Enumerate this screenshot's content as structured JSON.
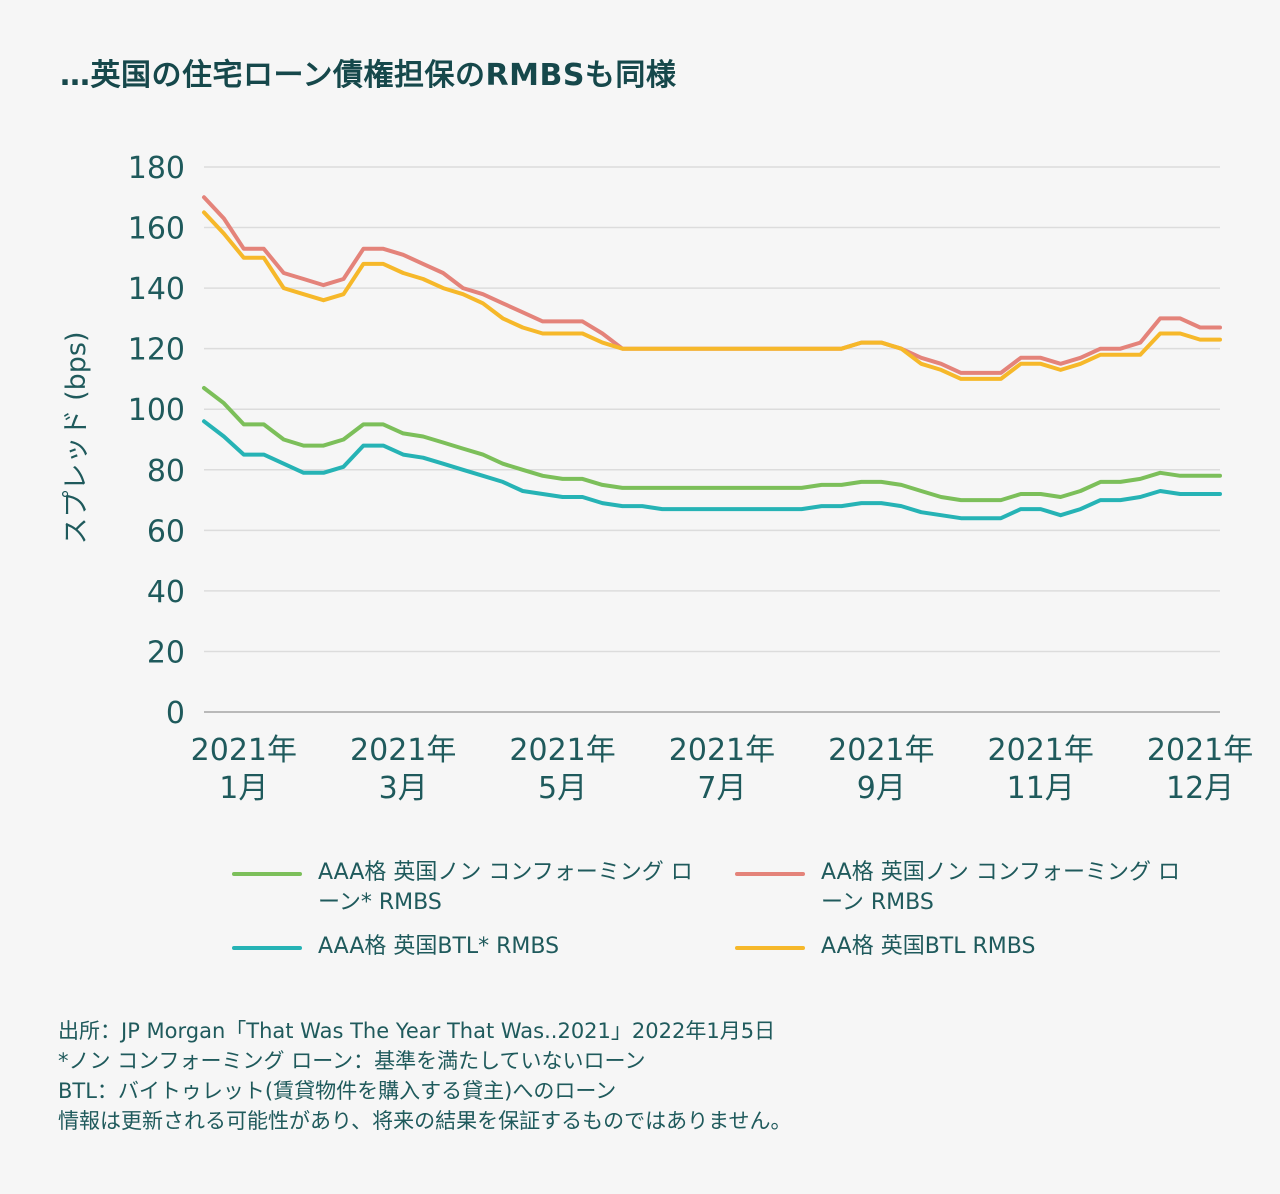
{
  "title": "…英国の住宅ローン債権担保のRMBSも同様",
  "chart_data": {
    "type": "line",
    "ylabel": "スプレッド (bps)",
    "ylim": [
      0,
      180
    ],
    "yticks": [
      0,
      20,
      40,
      60,
      80,
      100,
      120,
      140,
      160,
      180
    ],
    "grid": true,
    "legend_placement": "bottom",
    "x_tick_labels": [
      {
        "year": "2021年",
        "month": "1月",
        "index": 2
      },
      {
        "year": "2021年",
        "month": "3月",
        "index": 10
      },
      {
        "year": "2021年",
        "month": "5月",
        "index": 18
      },
      {
        "year": "2021年",
        "month": "7月",
        "index": 26
      },
      {
        "year": "2021年",
        "month": "9月",
        "index": 34
      },
      {
        "year": "2021年",
        "month": "11月",
        "index": 42
      },
      {
        "year": "2021年",
        "month": "12月",
        "index": 50
      }
    ],
    "x_points": 52,
    "series": [
      {
        "name": "AAA格 英国ノン コンフォーミング ローン* RMBS",
        "color": "#7cbf5a",
        "values": [
          107,
          102,
          95,
          95,
          90,
          88,
          88,
          90,
          95,
          95,
          92,
          91,
          89,
          87,
          85,
          82,
          80,
          78,
          77,
          77,
          75,
          74,
          74,
          74,
          74,
          74,
          74,
          74,
          74,
          74,
          74,
          75,
          75,
          76,
          76,
          75,
          73,
          71,
          70,
          70,
          70,
          72,
          72,
          71,
          73,
          76,
          76,
          77,
          79,
          78,
          78,
          78
        ]
      },
      {
        "name": "AAA格 英国BTL* RMBS",
        "color": "#26b3b5",
        "values": [
          96,
          91,
          85,
          85,
          82,
          79,
          79,
          81,
          88,
          88,
          85,
          84,
          82,
          80,
          78,
          76,
          73,
          72,
          71,
          71,
          69,
          68,
          68,
          67,
          67,
          67,
          67,
          67,
          67,
          67,
          67,
          68,
          68,
          69,
          69,
          68,
          66,
          65,
          64,
          64,
          64,
          67,
          67,
          65,
          67,
          70,
          70,
          71,
          73,
          72,
          72,
          72
        ]
      },
      {
        "name": "AA格 英国ノン コンフォーミング ローン RMBS",
        "color": "#e4837a",
        "values": [
          170,
          163,
          153,
          153,
          145,
          143,
          141,
          143,
          153,
          153,
          151,
          148,
          145,
          140,
          138,
          135,
          132,
          129,
          129,
          129,
          125,
          120,
          120,
          120,
          120,
          120,
          120,
          120,
          120,
          120,
          120,
          120,
          120,
          122,
          122,
          120,
          117,
          115,
          112,
          112,
          112,
          117,
          117,
          115,
          117,
          120,
          120,
          122,
          130,
          130,
          127,
          127
        ]
      },
      {
        "name": "AA格 英国BTL RMBS",
        "color": "#f6b82a",
        "values": [
          165,
          158,
          150,
          150,
          140,
          138,
          136,
          138,
          148,
          148,
          145,
          143,
          140,
          138,
          135,
          130,
          127,
          125,
          125,
          125,
          122,
          120,
          120,
          120,
          120,
          120,
          120,
          120,
          120,
          120,
          120,
          120,
          120,
          122,
          122,
          120,
          115,
          113,
          110,
          110,
          110,
          115,
          115,
          113,
          115,
          118,
          118,
          118,
          125,
          125,
          123,
          123
        ]
      }
    ]
  },
  "legend": [
    {
      "label": "AAA格 英国ノン コンフォーミング ローン* RMBS",
      "color": "#7cbf5a"
    },
    {
      "label": "AA格 英国ノン コンフォーミング ローン RMBS",
      "color": "#e4837a"
    },
    {
      "label": "AAA格 英国BTL* RMBS",
      "color": "#26b3b5"
    },
    {
      "label": "AA格 英国BTL RMBS",
      "color": "#f6b82a"
    }
  ],
  "notes": [
    "出所：JP Morgan「That Was The Year That Was..2021」2022年1月5日",
    "*ノン コンフォーミング ローン：基準を満たしていないローン",
    "BTL：バイトゥレット(賃貸物件を購入する貸主)へのローン",
    "情報は更新される可能性があり、将来の結果を保証するものではありません。"
  ]
}
